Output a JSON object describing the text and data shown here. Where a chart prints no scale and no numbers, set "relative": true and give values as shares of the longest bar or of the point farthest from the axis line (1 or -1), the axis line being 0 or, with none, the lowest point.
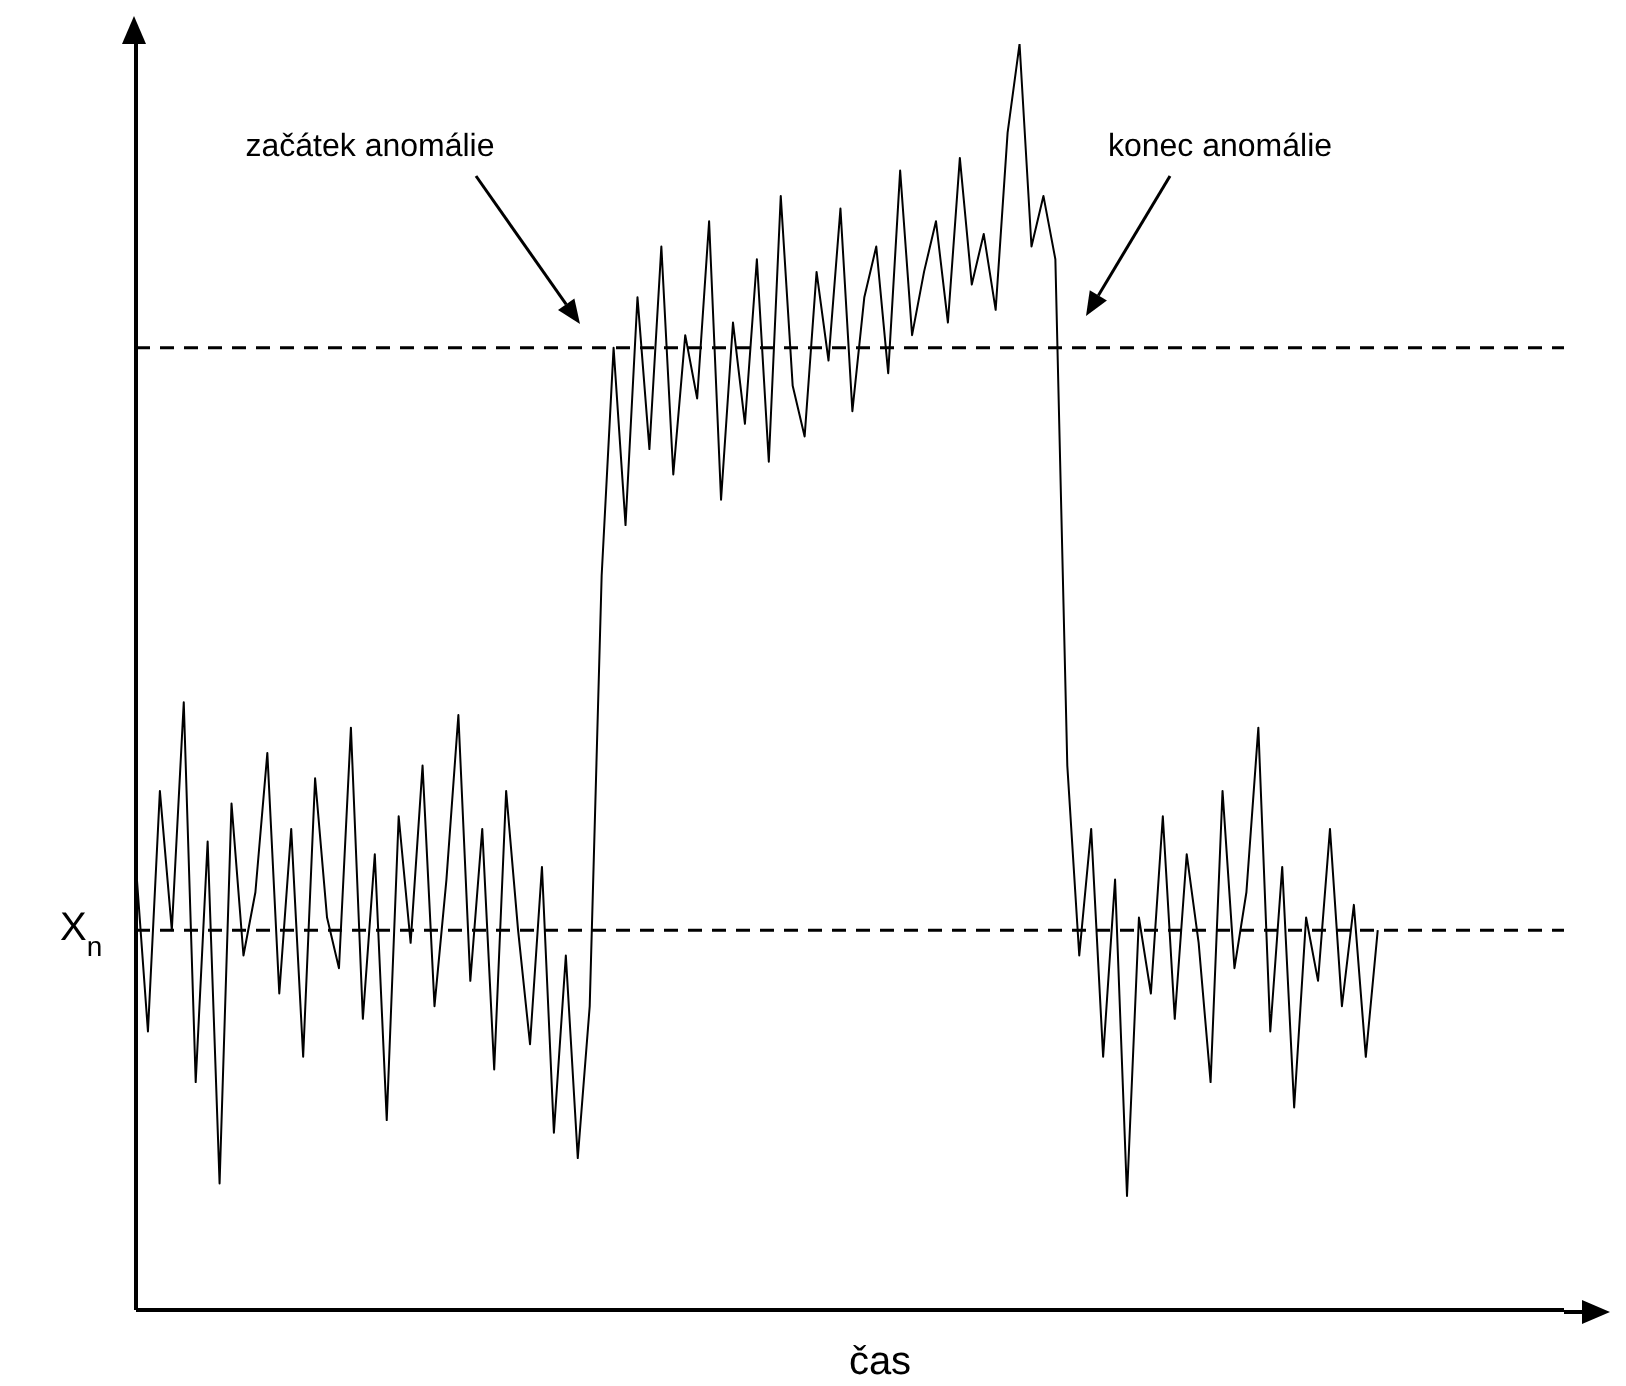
{
  "chart_data": {
    "type": "line",
    "relative": true,
    "xlabel": "čas",
    "ylabel": "X$_{n}$",
    "marker": "none",
    "annotations": [
      "začátek anomálie",
      "konec anomálie"
    ],
    "ref_lines": [
      {
        "axis": "y",
        "value": 0.76,
        "line_style": "dashed",
        "color": "#000000"
      },
      {
        "axis": "y",
        "value": 0.3,
        "line_style": "dashed",
        "color": "#000000"
      }
    ],
    "categories": [
      null,
      null,
      null,
      null,
      null,
      null,
      null,
      null,
      null,
      null,
      null,
      null,
      null,
      null,
      null,
      null,
      null,
      null,
      null,
      null,
      null,
      null,
      null,
      null,
      null,
      null,
      null,
      null,
      null,
      null,
      null,
      null,
      null,
      null,
      null,
      null,
      null,
      null,
      null,
      null,
      null,
      null,
      null,
      null,
      null,
      null,
      null,
      null,
      null,
      null,
      null,
      null,
      null,
      null,
      null,
      null,
      null,
      null,
      null,
      null,
      null,
      null,
      null,
      null,
      null,
      null,
      null,
      null,
      null,
      null,
      null,
      null,
      null,
      null,
      null,
      null,
      null,
      null,
      null,
      null,
      null,
      null,
      null,
      null,
      null,
      null,
      null,
      null,
      null,
      null,
      null,
      null,
      null,
      null,
      null,
      null,
      null,
      null,
      null,
      null,
      null,
      null,
      null,
      null,
      null
    ],
    "series": [
      {
        "color": "#000000",
        "values": [
          0.35,
          0.22,
          0.41,
          0.3,
          0.48,
          0.18,
          0.37,
          0.1,
          0.4,
          0.28,
          0.33,
          0.44,
          0.25,
          0.38,
          0.2,
          0.42,
          0.31,
          0.27,
          0.46,
          0.23,
          0.36,
          0.15,
          0.39,
          0.29,
          0.43,
          0.24,
          0.34,
          0.47,
          0.26,
          0.38,
          0.19,
          0.41,
          0.3,
          0.21,
          0.35,
          0.14,
          0.28,
          0.12,
          0.24,
          0.58,
          0.76,
          0.62,
          0.8,
          0.68,
          0.84,
          0.66,
          0.77,
          0.72,
          0.86,
          0.64,
          0.78,
          0.7,
          0.83,
          0.67,
          0.88,
          0.73,
          0.69,
          0.82,
          0.75,
          0.87,
          0.71,
          0.8,
          0.84,
          0.74,
          0.9,
          0.77,
          0.82,
          0.86,
          0.78,
          0.91,
          0.81,
          0.85,
          0.79,
          0.93,
          1.0,
          0.84,
          0.88,
          0.83,
          0.43,
          0.28,
          0.38,
          0.2,
          0.34,
          0.09,
          0.31,
          0.25,
          0.39,
          0.23,
          0.36,
          0.29,
          0.18,
          0.41,
          0.27,
          0.33,
          0.46,
          0.22,
          0.35,
          0.16,
          0.31,
          0.26,
          0.38,
          0.24,
          0.32,
          0.2,
          0.3
        ]
      }
    ]
  }
}
